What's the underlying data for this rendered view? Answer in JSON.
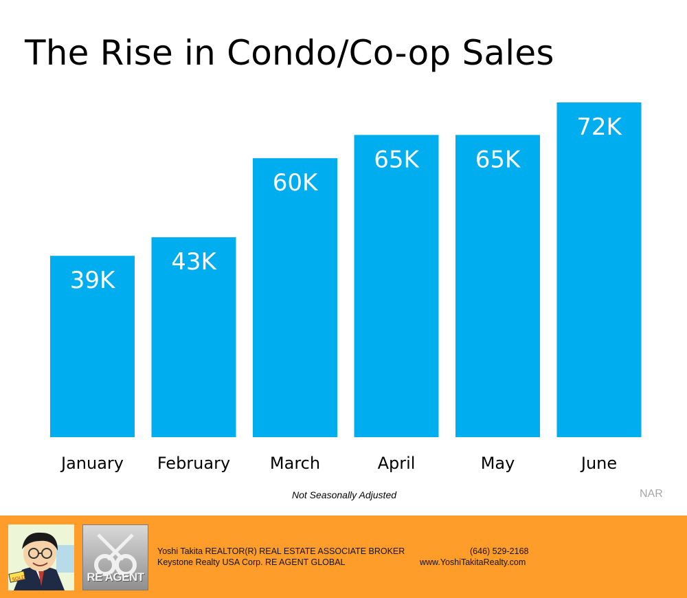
{
  "title": "The Rise in Condo/Co-op Sales",
  "note": "Not Seasonally Adjusted",
  "source": "NAR",
  "colors": {
    "bar": "#00adee",
    "footer": "#ff9d2b",
    "source": "#a6a6a6"
  },
  "chart_data": {
    "type": "bar",
    "title": "The Rise in Condo/Co-op Sales",
    "categories": [
      "January",
      "February",
      "March",
      "April",
      "May",
      "June"
    ],
    "values": [
      39,
      43,
      60,
      65,
      65,
      72
    ],
    "data_labels": [
      "39K",
      "43K",
      "60K",
      "65K",
      "65K",
      "72K"
    ],
    "unit": "thousands of sales",
    "xlabel": "",
    "ylabel": "",
    "ylim": [
      0,
      72
    ],
    "grid": false,
    "legend": "none"
  },
  "footer": {
    "line1": "Yoshi Takita REALTOR(R) REAL ESTATE ASSOCIATE BROKER",
    "line2": "Keystone Realty USA Corp.  RE AGENT GLOBAL",
    "phone": "(646) 529-2168",
    "website": "www.YoshiTakitaRealty.com",
    "logo_text": "RE AGENT",
    "avatar_sign": "SOLD"
  }
}
